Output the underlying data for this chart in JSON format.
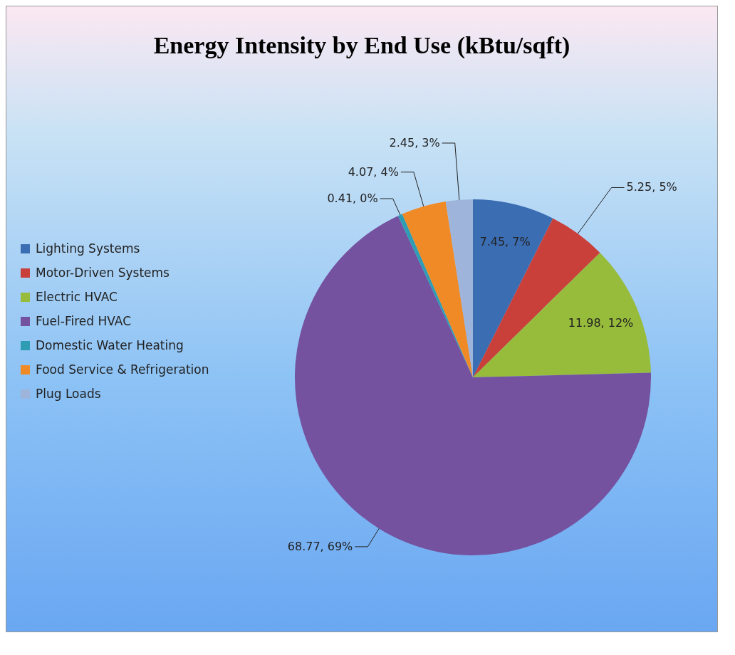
{
  "chart_data": {
    "type": "pie",
    "title": "Energy Intensity by End Use (kBtu/sqft)",
    "categories": [
      "Lighting Systems",
      "Motor-Driven Systems",
      "Electric HVAC",
      "Fuel-Fired HVAC",
      "Domestic Water Heating",
      "Food Service & Refrigeration",
      "Plug Loads"
    ],
    "values": [
      7.45,
      5.25,
      11.98,
      68.77,
      0.41,
      4.07,
      2.45
    ],
    "colors": [
      "#3b6db3",
      "#c9403a",
      "#97bb3b",
      "#7452a0",
      "#2e9db4",
      "#f08a26",
      "#9fb4da"
    ],
    "value_labels": [
      "7.45, 7%",
      "5.25, 5%",
      "11.98, 12%",
      "68.77, 69%",
      "0.41, 0%",
      "4.07, 4%",
      "2.45, 3%"
    ],
    "legend": "left"
  }
}
